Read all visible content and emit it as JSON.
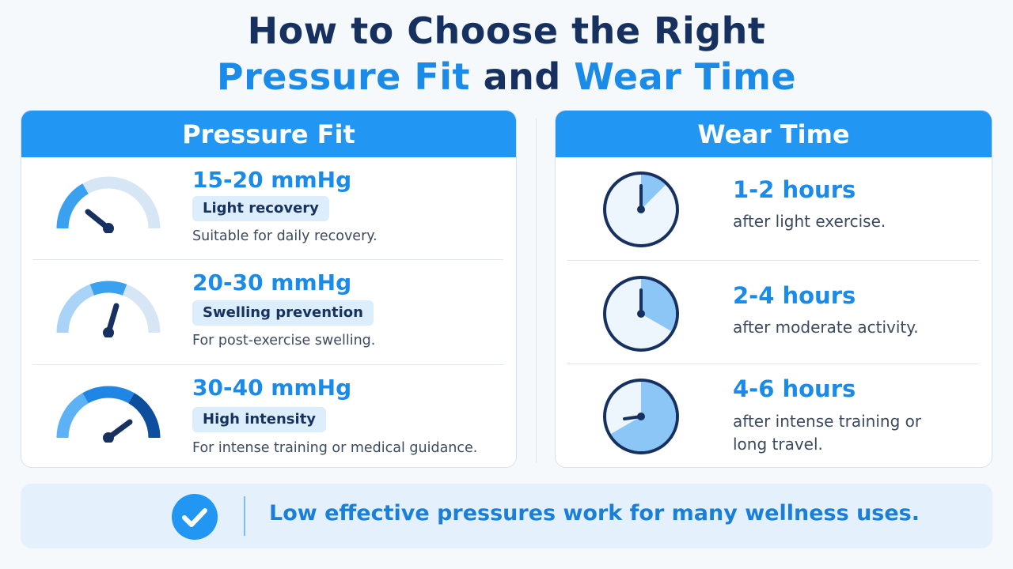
{
  "title": {
    "line1": "How to Choose the Right",
    "line2_part1": "Pressure Fit",
    "line2_part2": "and",
    "line2_part3": "Wear Time"
  },
  "pressure_fit": {
    "heading": "Pressure Fit",
    "items": [
      {
        "value": "15-20 mmHg",
        "badge": "Light recovery",
        "description": "Suitable for daily recovery.",
        "level": "low"
      },
      {
        "value": "20-30 mmHg",
        "badge": "Swelling prevention",
        "description": "For post-exercise swelling.",
        "level": "medium"
      },
      {
        "value": "30-40 mmHg",
        "badge": "High intensity",
        "description": "For intense training or medical guidance.",
        "level": "high"
      }
    ]
  },
  "wear_time": {
    "heading": "Wear Time",
    "items": [
      {
        "value": "1-2 hours",
        "description": "after light exercise.",
        "fraction": 0.125
      },
      {
        "value": "2-4 hours",
        "description": "after moderate activity.",
        "fraction": 0.333
      },
      {
        "value": "4-6 hours",
        "description": "after intense training or long travel.",
        "description_line1": "after intense training or",
        "description_line2": "long travel.",
        "fraction": 0.667
      }
    ]
  },
  "banner": {
    "text": "Low effective pressures work for many wellness uses."
  },
  "colors": {
    "accent_blue": "#1a8be8",
    "header_blue": "#2196f3",
    "dark_navy": "#16315f",
    "badge_bg": "#dcedfb",
    "banner_bg": "#e4f1fc"
  },
  "icons": {
    "gauge": "speedometer-gauge-icon",
    "clock": "clock-icon",
    "check": "check-circle-icon"
  }
}
